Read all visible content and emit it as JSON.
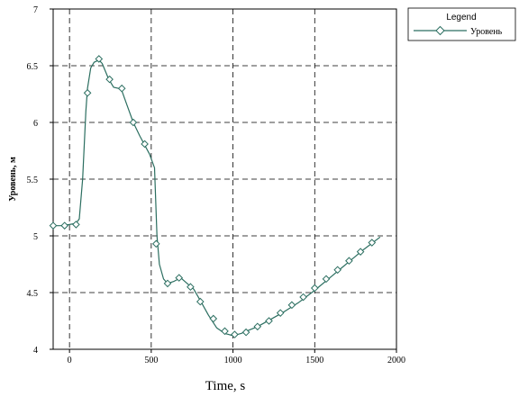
{
  "chart_data": {
    "type": "line",
    "title": "",
    "xlabel": "Time, s",
    "ylabel": "Уровень, м",
    "xlim": [
      -100,
      2000
    ],
    "ylim": [
      4,
      7
    ],
    "grid": true,
    "grid_style": "dashed",
    "x_ticks": [
      0,
      500,
      1000,
      1500,
      2000
    ],
    "y_ticks": [
      4,
      4.5,
      5,
      5.5,
      6,
      6.5,
      7
    ],
    "x_tick_labels": [
      "0",
      "500",
      "1000",
      "1500",
      "2000"
    ],
    "y_tick_labels": [
      "4",
      "4.5",
      "5",
      "5.5",
      "6",
      "6.5",
      "7"
    ],
    "legend": {
      "title": "Legend",
      "placement": "top-right-outside"
    },
    "series": [
      {
        "name": "Уровень",
        "color": "#2b6e60",
        "marker": "diamond",
        "line": [
          [
            -100,
            5.09
          ],
          [
            -50,
            5.09
          ],
          [
            0,
            5.1
          ],
          [
            40,
            5.11
          ],
          [
            60,
            5.15
          ],
          [
            80,
            5.5
          ],
          [
            100,
            6.1
          ],
          [
            110,
            6.3
          ],
          [
            130,
            6.48
          ],
          [
            150,
            6.53
          ],
          [
            180,
            6.55
          ],
          [
            200,
            6.52
          ],
          [
            240,
            6.38
          ],
          [
            270,
            6.31
          ],
          [
            300,
            6.3
          ],
          [
            320,
            6.28
          ],
          [
            350,
            6.16
          ],
          [
            390,
            6.0
          ],
          [
            430,
            5.88
          ],
          [
            460,
            5.8
          ],
          [
            490,
            5.72
          ],
          [
            520,
            5.6
          ],
          [
            535,
            5.0
          ],
          [
            550,
            4.75
          ],
          [
            575,
            4.62
          ],
          [
            600,
            4.58
          ],
          [
            640,
            4.6
          ],
          [
            680,
            4.63
          ],
          [
            720,
            4.58
          ],
          [
            760,
            4.53
          ],
          [
            800,
            4.43
          ],
          [
            850,
            4.3
          ],
          [
            900,
            4.19
          ],
          [
            950,
            4.14
          ],
          [
            1000,
            4.12
          ],
          [
            1050,
            4.14
          ],
          [
            1100,
            4.17
          ],
          [
            1150,
            4.2
          ],
          [
            1200,
            4.24
          ],
          [
            1300,
            4.32
          ],
          [
            1400,
            4.41
          ],
          [
            1500,
            4.52
          ],
          [
            1600,
            4.64
          ],
          [
            1700,
            4.76
          ],
          [
            1800,
            4.88
          ],
          [
            1900,
            4.99
          ]
        ],
        "markers": [
          [
            -100,
            5.09
          ],
          [
            -30,
            5.09
          ],
          [
            40,
            5.1
          ],
          [
            110,
            6.26
          ],
          [
            180,
            6.56
          ],
          [
            245,
            6.38
          ],
          [
            320,
            6.3
          ],
          [
            390,
            6.0
          ],
          [
            460,
            5.81
          ],
          [
            530,
            4.93
          ],
          [
            600,
            4.58
          ],
          [
            670,
            4.63
          ],
          [
            740,
            4.55
          ],
          [
            800,
            4.42
          ],
          [
            880,
            4.27
          ],
          [
            950,
            4.16
          ],
          [
            1010,
            4.13
          ],
          [
            1080,
            4.15
          ],
          [
            1150,
            4.2
          ],
          [
            1220,
            4.25
          ],
          [
            1290,
            4.32
          ],
          [
            1360,
            4.39
          ],
          [
            1430,
            4.46
          ],
          [
            1500,
            4.54
          ],
          [
            1570,
            4.62
          ],
          [
            1640,
            4.7
          ],
          [
            1710,
            4.78
          ],
          [
            1780,
            4.86
          ],
          [
            1850,
            4.94
          ]
        ]
      }
    ]
  }
}
